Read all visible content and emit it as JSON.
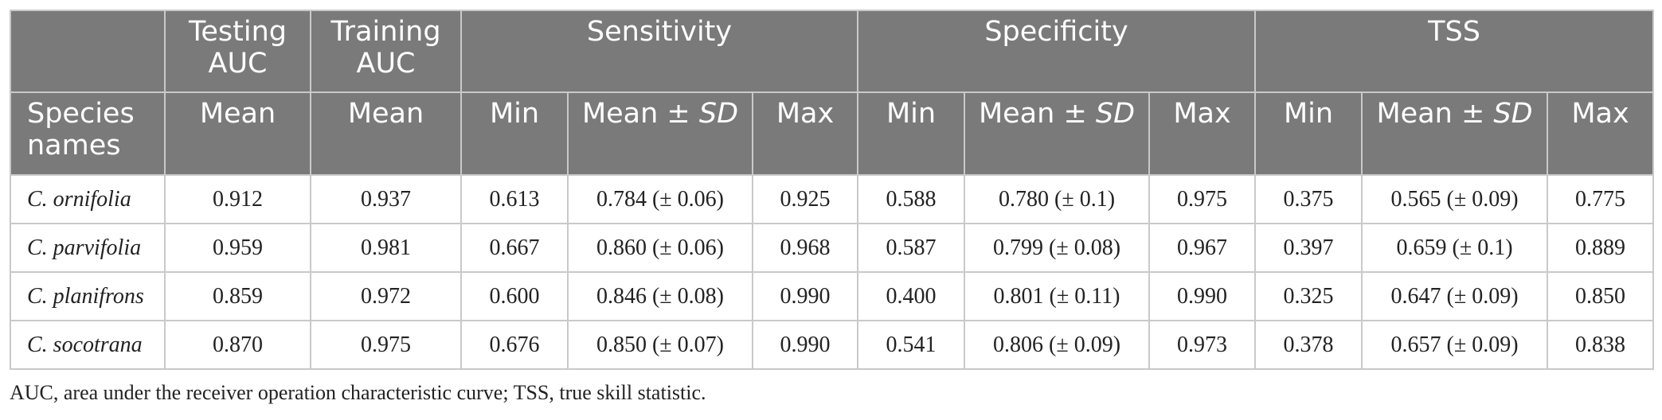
{
  "header": {
    "testing_auc": "Testing AUC",
    "training_auc": "Training AUC",
    "sensitivity": "Sensitivity",
    "specificity": "Specificity",
    "tss": "TSS",
    "species_names": "Species names",
    "mean": "Mean",
    "min": "Min",
    "max": "Max",
    "mean_pm": "Mean ± ",
    "sd": "SD"
  },
  "rows": [
    {
      "species": "C. ornifolia",
      "testing": "0.912",
      "training": "0.937",
      "sens_min": "0.613",
      "sens_mean": "0.784 (± 0.06)",
      "sens_max": "0.925",
      "spec_min": "0.588",
      "spec_mean": "0.780 (± 0.1)",
      "spec_max": "0.975",
      "tss_min": "0.375",
      "tss_mean": "0.565 (± 0.09)",
      "tss_max": "0.775"
    },
    {
      "species": "C. parvifolia",
      "testing": "0.959",
      "training": "0.981",
      "sens_min": "0.667",
      "sens_mean": "0.860 (± 0.06)",
      "sens_max": "0.968",
      "spec_min": "0.587",
      "spec_mean": "0.799 (± 0.08)",
      "spec_max": "0.967",
      "tss_min": "0.397",
      "tss_mean": "0.659 (± 0.1)",
      "tss_max": "0.889"
    },
    {
      "species": "C. planifrons",
      "testing": "0.859",
      "training": "0.972",
      "sens_min": "0.600",
      "sens_mean": "0.846 (± 0.08)",
      "sens_max": "0.990",
      "spec_min": "0.400",
      "spec_mean": "0.801 (± 0.11)",
      "spec_max": "0.990",
      "tss_min": "0.325",
      "tss_mean": "0.647 (± 0.09)",
      "tss_max": "0.850"
    },
    {
      "species": "C. socotrana",
      "testing": "0.870",
      "training": "0.975",
      "sens_min": "0.676",
      "sens_mean": "0.850 (± 0.07)",
      "sens_max": "0.990",
      "spec_min": "0.541",
      "spec_mean": "0.806 (± 0.09)",
      "spec_max": "0.973",
      "tss_min": "0.378",
      "tss_mean": "0.657 (± 0.09)",
      "tss_max": "0.838"
    }
  ],
  "footnote": "AUC, area under the receiver operation characteristic curve; TSS, true skill statistic."
}
